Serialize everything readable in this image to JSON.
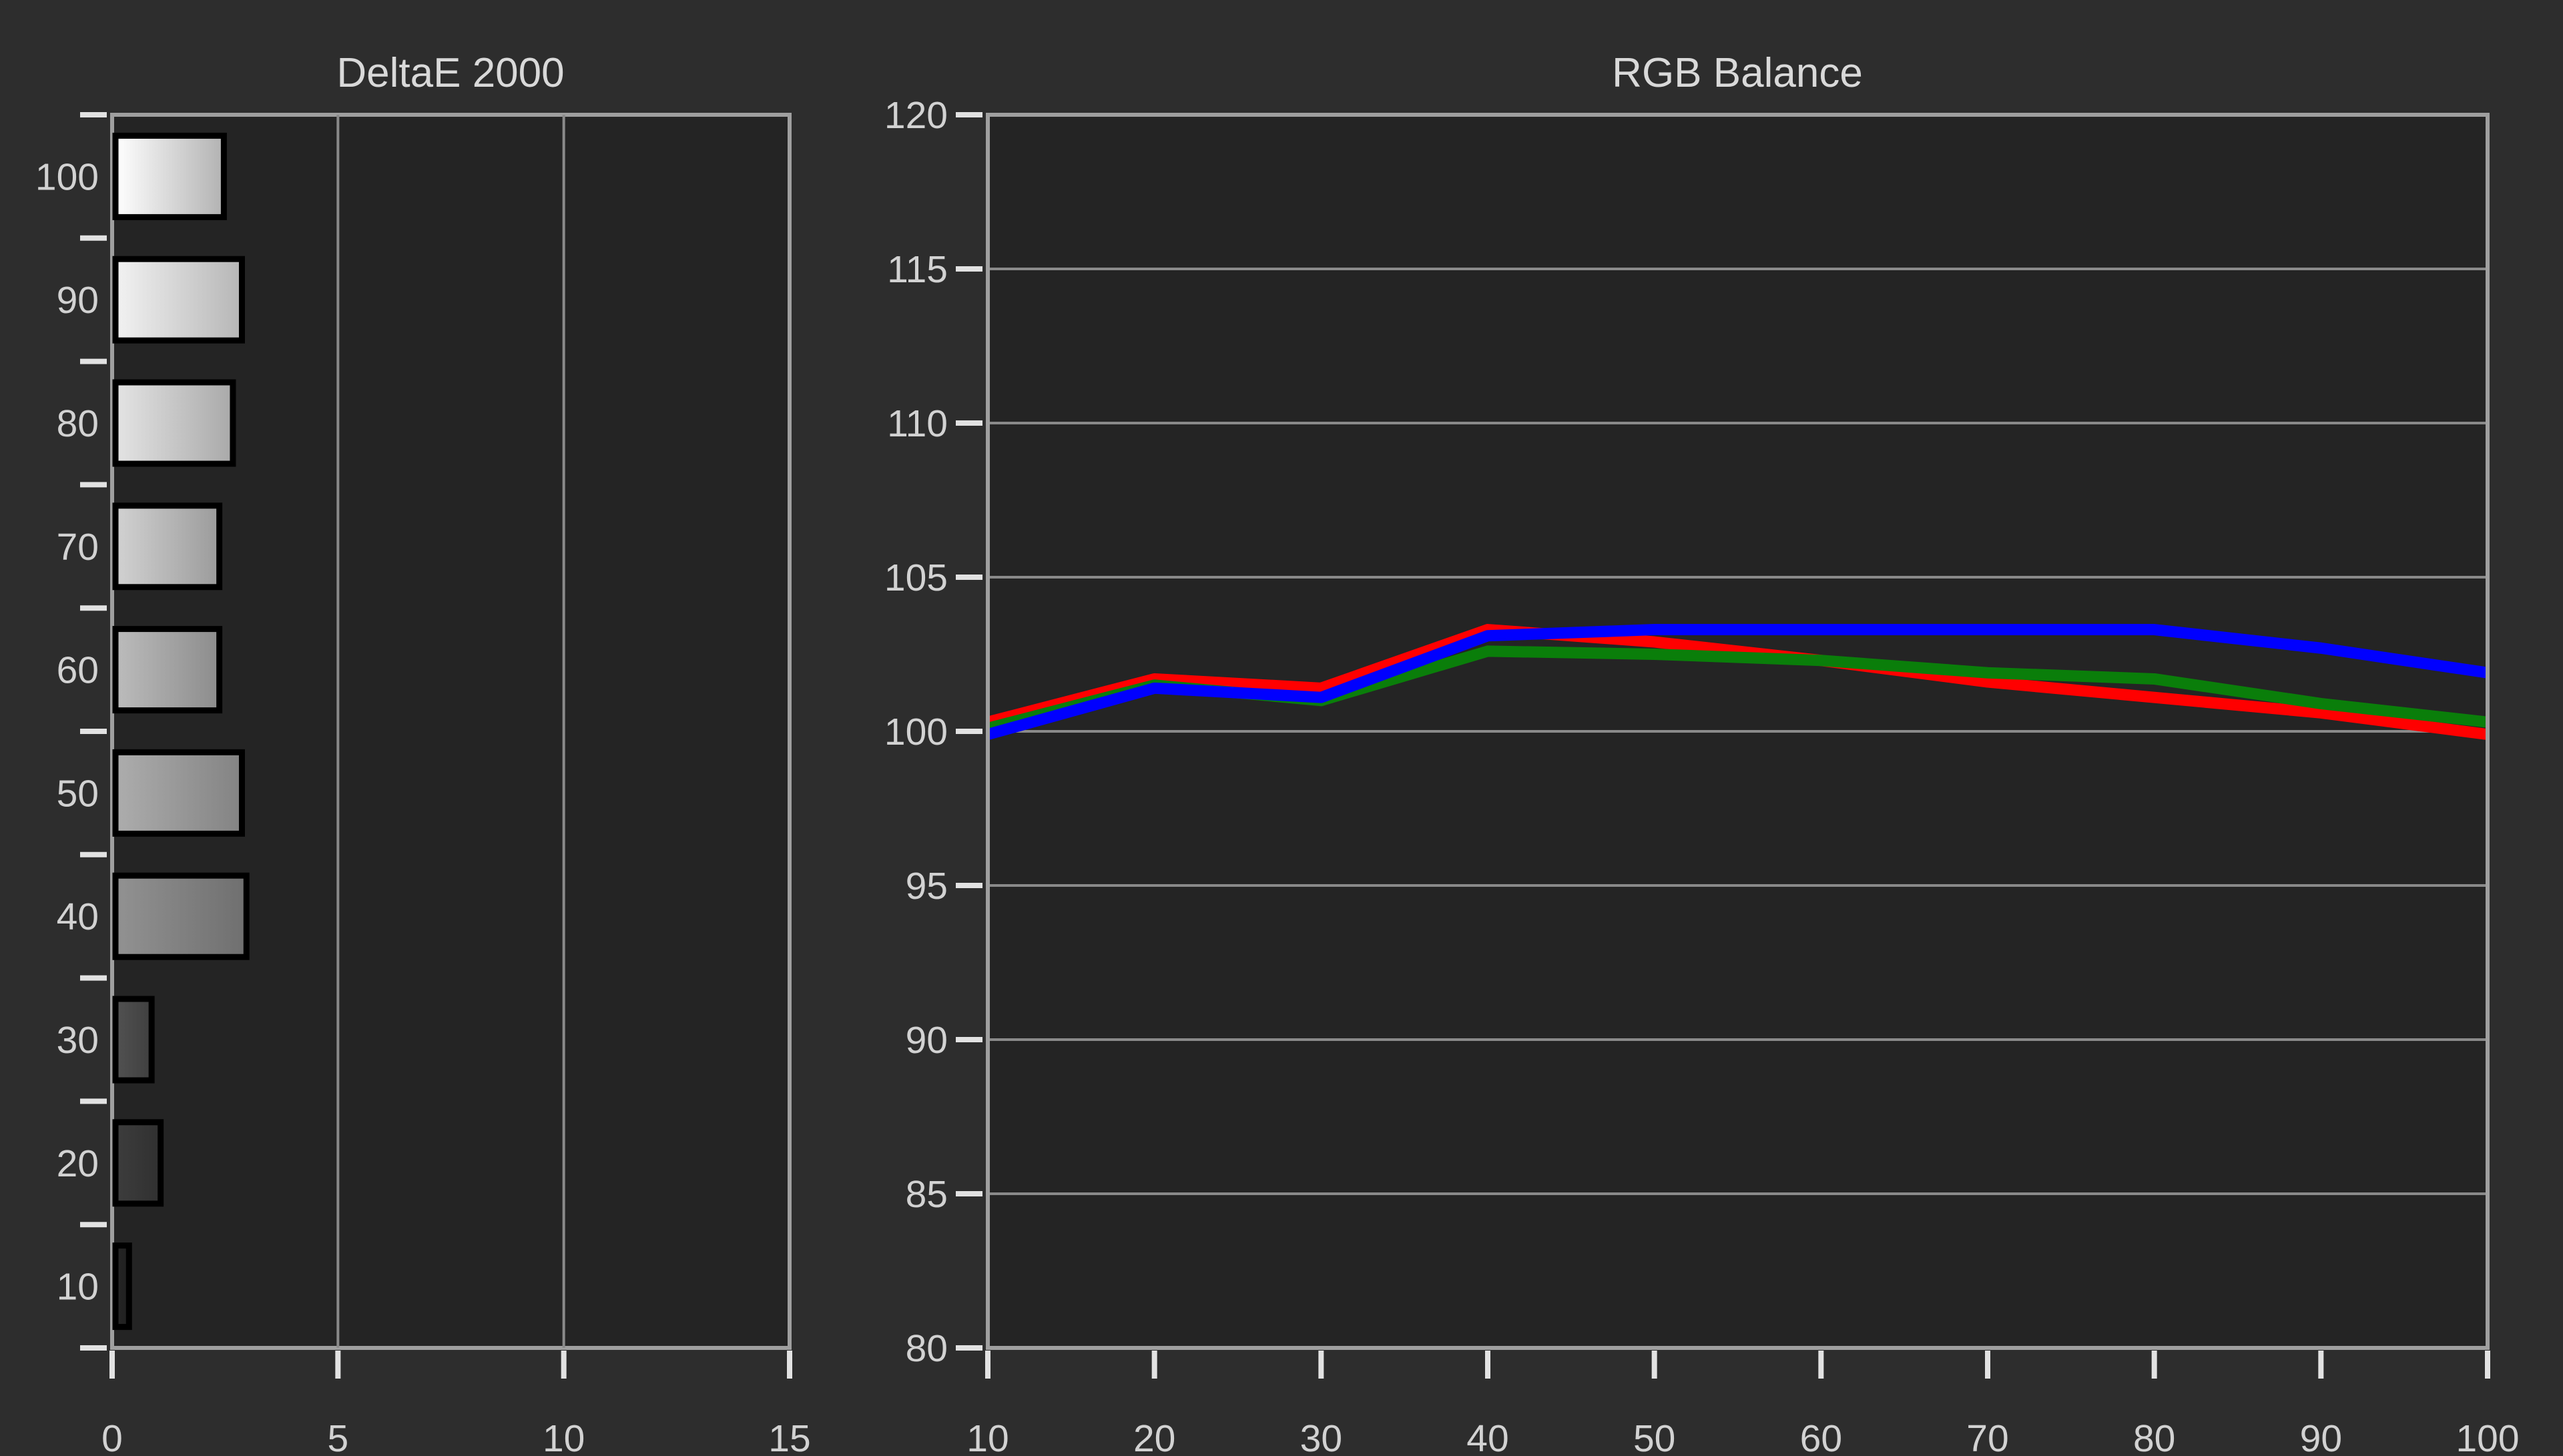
{
  "page": {
    "background": "#2d2d2d",
    "plot_background": "#242424",
    "border_color": "#9f9f9f",
    "grid_color": "#8a8a8a",
    "tick_color": "#e2e2e2",
    "label_color": "#d2d2d2",
    "title_color": "#d9d9d9"
  },
  "chart_data": [
    {
      "type": "bar",
      "orientation": "horizontal",
      "title": "DeltaE 2000",
      "categories": [
        "100",
        "90",
        "80",
        "70",
        "60",
        "50",
        "40",
        "30",
        "20",
        "10"
      ],
      "values": [
        2.4,
        2.8,
        2.6,
        2.3,
        2.3,
        2.8,
        2.9,
        0.8,
        1.0,
        0.3
      ],
      "xlim": [
        0,
        15
      ],
      "x_tick_labels": [
        "0",
        "5",
        "10",
        "15"
      ],
      "grid": "vertical-only",
      "bar_outline": "#000000",
      "bar_gradients": [
        [
          "#ffffff",
          "#b2b2b2"
        ],
        [
          "#f2f2f2",
          "#b6b6b6"
        ],
        [
          "#e4e4e4",
          "#a9a9a9"
        ],
        [
          "#d2d2d2",
          "#9b9b9b"
        ],
        [
          "#bcbcbc",
          "#8c8c8c"
        ],
        [
          "#adadad",
          "#838383"
        ],
        [
          "#929292",
          "#6f6f6f"
        ],
        [
          "#525252",
          "#3f3f3f"
        ],
        [
          "#3d3d3d",
          "#303030"
        ],
        [
          "#262626",
          "#1f1f1f"
        ]
      ]
    },
    {
      "type": "line",
      "title": "RGB Balance",
      "x": [
        10,
        20,
        30,
        40,
        50,
        60,
        70,
        80,
        90,
        100
      ],
      "x_tick_labels": [
        "10",
        "20",
        "30",
        "40",
        "50",
        "60",
        "70",
        "80",
        "90",
        "100"
      ],
      "ylim": [
        80,
        120
      ],
      "y_tick_labels": [
        "120",
        "115",
        "110",
        "105",
        "100",
        "95",
        "90",
        "85",
        "80"
      ],
      "grid": "horizontal-only",
      "series": [
        {
          "name": "red",
          "color": "#ff0000",
          "values": [
            100.3,
            101.7,
            101.4,
            103.3,
            102.9,
            102.3,
            101.6,
            101.1,
            100.6,
            99.9
          ]
        },
        {
          "name": "green",
          "color": "#0a7e0a",
          "values": [
            100.1,
            101.5,
            101.0,
            102.6,
            102.5,
            102.3,
            101.9,
            101.7,
            100.9,
            100.3
          ]
        },
        {
          "name": "blue",
          "color": "#0000ff",
          "values": [
            99.9,
            101.4,
            101.1,
            103.1,
            103.3,
            103.3,
            103.3,
            103.3,
            102.7,
            101.9
          ]
        }
      ]
    }
  ]
}
